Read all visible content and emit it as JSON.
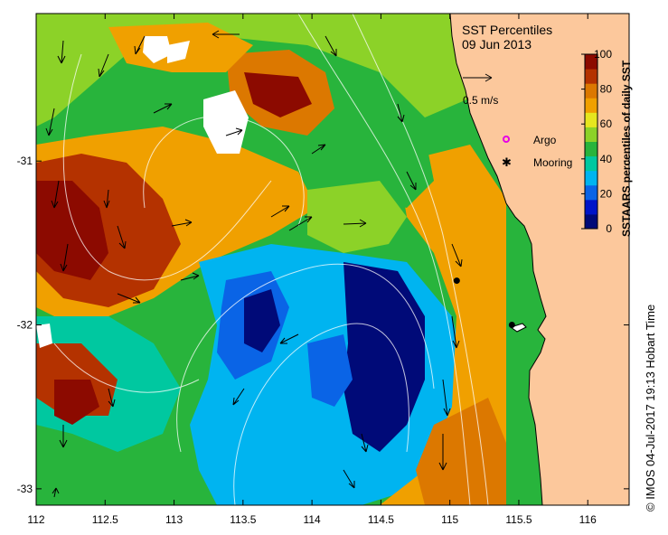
{
  "title": "SST Percentiles",
  "date": "09 Jun 2013",
  "scale_label": "0.5 m/s",
  "legend": {
    "argo": "Argo",
    "mooring": "Mooring"
  },
  "colorbar": {
    "title": "SSTAARS percentiles of daily SST",
    "ticks": [
      "100",
      "80",
      "60",
      "40",
      "20",
      "0"
    ],
    "colors": [
      "#000a78",
      "#0014c8",
      "#0a64e6",
      "#00b4f0",
      "#00c8a0",
      "#28b43c",
      "#8cd228",
      "#e6e61e",
      "#f0a000",
      "#dc7800",
      "#b43200",
      "#8c0a00"
    ]
  },
  "x_ticks": [
    "112",
    "112.5",
    "113",
    "113.5",
    "114",
    "114.5",
    "115",
    "115.5",
    "116"
  ],
  "y_ticks": [
    "-31",
    "-32",
    "-33"
  ],
  "credit": "© IMOS 04-Jul-2017 19:13 Hobart Time",
  "map": {
    "land_color": "#fcc89c",
    "sea_colors": {
      "dark_red": "#8c0a00",
      "red": "#b43200",
      "orange": "#dc7800",
      "amber": "#f0a000",
      "yellow": "#e6e61e",
      "light_green": "#8cd228",
      "green": "#28b43c",
      "teal": "#00c8a0",
      "cyan": "#00b4f0",
      "blue": "#0a64e6",
      "navy": "#000a78"
    },
    "moorings": [
      {
        "lon": 115.05,
        "lat": -31.73
      },
      {
        "lon": 115.45,
        "lat": -32.0
      }
    ]
  }
}
